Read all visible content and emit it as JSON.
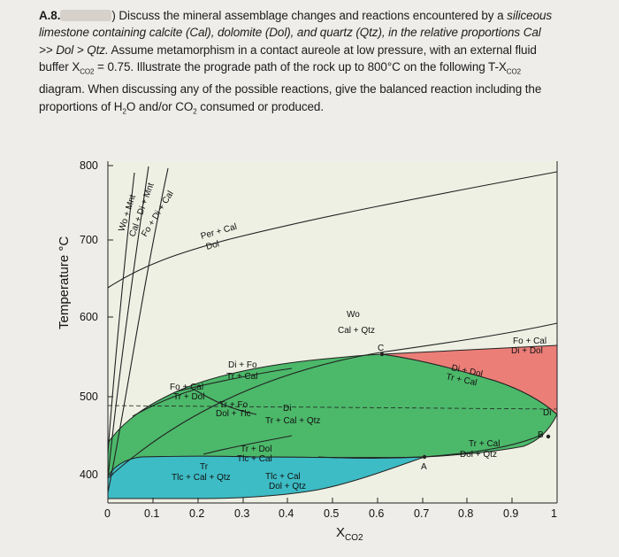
{
  "question": {
    "number": "A.8.",
    "lead": ") Discuss the mineral assemblage changes and reactions encountered by a ",
    "italic_word": "siliceous",
    "line2_italic": "limestone containing calcite (Cal), dolomite (Dol), and quartz (Qtz), in the relative proportions Cal",
    "line3_italic": ">> Dol > Qtz.",
    "line3_rest": " Assume metamorphism in a contact aureole at low pressure, with an external fluid",
    "line4": "buffer X",
    "line4_sub": "CO2",
    "line4_rest": " = 0.75. Illustrate the prograde path of the rock up to 800°C on the following T-X",
    "line4_sub2": "CO2",
    "line5": "diagram. When discussing any of the possible reactions, give the balanced reaction including the",
    "line6a": "proportions of H",
    "line6_sub": "2",
    "line6b": "O and/or CO",
    "line6_sub2": "2",
    "line6c": " consumed or produced."
  },
  "diagram": {
    "y_axis_label": "Temperature °C",
    "x_axis_label": "X",
    "x_axis_sub": "CO2",
    "y_ticks": [
      "800",
      "700",
      "600",
      "500",
      "400"
    ],
    "x_ticks": [
      "0",
      "0.1",
      "0.2",
      "0.3",
      "0.4",
      "0.5",
      "0.6",
      "0.7",
      "0.8",
      "0.9",
      "1"
    ],
    "labels": {
      "wo_mnt": "Wo + Mnt",
      "cal_di_mnt": "Cal + Di + Mnt",
      "fo_di_cal": "Fo + Di + Cal",
      "per_cal": "Per + Cal",
      "dol": "Dol",
      "wo": "Wo",
      "cal_qtz": "Cal + Qtz",
      "point_c": "C",
      "fo_cal_right": "Fo + Cal",
      "di_dol_right": "Di + Dol",
      "di_fo": "Di + Fo",
      "tr_cal": "Tr + Cal",
      "di_dol_mid": "Di + Dol",
      "tr_cal_mid": "Tr + Cal",
      "fo_cal_left": "Fo + Cal",
      "tr_dol": "Tr + Dol",
      "tr_fo": "Tr + Fo",
      "dol_tlc": "Dol + Tlc",
      "di_mid": "Di",
      "tr_cal_qtz": "Tr + Cal + Qtz",
      "di_right": "Di",
      "point_b": "B",
      "tr_dol_low": "Tr + Dol",
      "tlc_cal": "Tlc + Cal",
      "tr_low": "Tr",
      "tlc_cal_qtz": "Tlc + Cal + Qtz",
      "tr_cal_low": "Tr + Cal",
      "dol_qtz_right": "Dol + Qtz",
      "point_a": "A",
      "tlc_cal2": "Tlc + Cal",
      "dol_qtz_low": "Dol + Qtz"
    },
    "colors": {
      "green": "#4cb86a",
      "teal": "#3dbcc5",
      "red": "#ec7e78",
      "diagram_bg": "#eef0e3"
    }
  }
}
